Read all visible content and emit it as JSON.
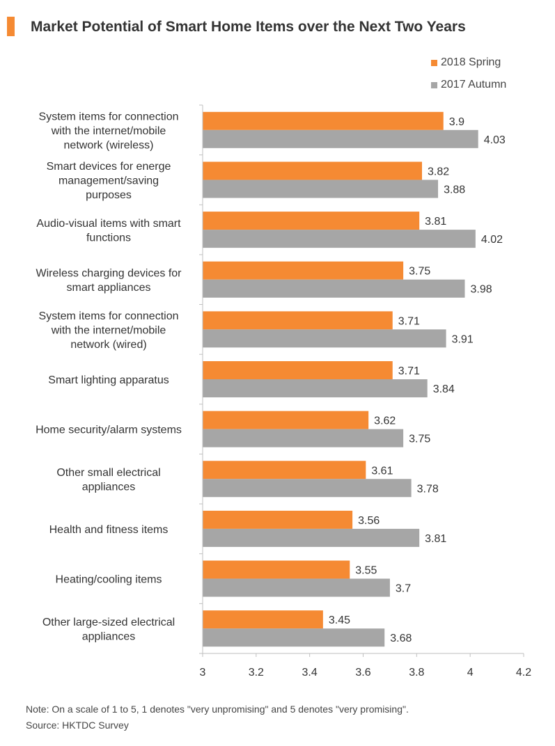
{
  "chart_data": {
    "type": "bar",
    "orientation": "horizontal",
    "title": "Market Potential of Smart Home Items over the Next Two Years",
    "categories": [
      [
        "System items for connection",
        "with the internet/mobile",
        "network (wireless)"
      ],
      [
        "Smart devices for energe",
        "management/saving",
        "purposes"
      ],
      [
        "Audio-visual items with smart",
        "functions"
      ],
      [
        "Wireless charging devices for",
        "smart appliances"
      ],
      [
        "System items for connection",
        "with the internet/mobile",
        "network (wired)"
      ],
      [
        "Smart lighting apparatus"
      ],
      [
        "Home security/alarm systems"
      ],
      [
        "Other small electrical",
        "appliances"
      ],
      [
        "Health and fitness items"
      ],
      [
        "Heating/cooling items"
      ],
      [
        "Other large-sized electrical",
        "appliances"
      ]
    ],
    "series": [
      {
        "name": "2018 Spring",
        "color": "#F58A33",
        "values": [
          3.9,
          3.82,
          3.81,
          3.75,
          3.71,
          3.71,
          3.62,
          3.61,
          3.56,
          3.55,
          3.45
        ],
        "labels": [
          "3.9",
          "3.82",
          "3.81",
          "3.75",
          "3.71",
          "3.71",
          "3.62",
          "3.61",
          "3.56",
          "3.55",
          "3.45"
        ]
      },
      {
        "name": "2017 Autumn",
        "color": "#A6A6A6",
        "values": [
          4.03,
          3.88,
          4.02,
          3.98,
          3.91,
          3.84,
          3.75,
          3.78,
          3.81,
          3.7,
          3.68
        ],
        "labels": [
          "4.03",
          "3.88",
          "4.02",
          "3.98",
          "3.91",
          "3.84",
          "3.75",
          "3.78",
          "3.81",
          "3.7",
          "3.68"
        ]
      }
    ],
    "xlim": [
      3,
      4.2
    ],
    "xticks": [
      3,
      3.2,
      3.4,
      3.6,
      3.8,
      4,
      4.2
    ],
    "xtick_labels": [
      "3",
      "3.2",
      "3.4",
      "3.6",
      "3.8",
      "4",
      "4.2"
    ],
    "grid": false,
    "legend_position": "top-right",
    "note": "Note: On a scale of 1 to 5, 1 denotes \"very unpromising\" and 5 denotes \"very promising\".",
    "source": "Source: HKTDC Survey"
  },
  "colors": {
    "accent": "#F58A33",
    "secondary": "#A6A6A6",
    "axis": "#BFBFBF",
    "text": "#333333"
  }
}
